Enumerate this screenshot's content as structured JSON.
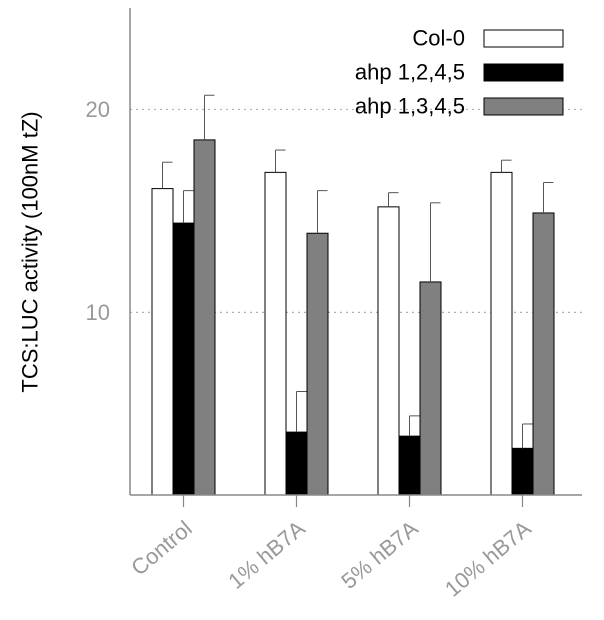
{
  "chart_data": {
    "type": "bar",
    "title": "",
    "xlabel": "",
    "ylabel": "TCS:LUC activity (100nM tZ)",
    "ylim": [
      1,
      25
    ],
    "yticks": [
      10,
      20
    ],
    "grid": true,
    "legend_position": "top-right",
    "categories": [
      "Control",
      "1% hB7A",
      "5% hB7A",
      "10% hB7A"
    ],
    "series": [
      {
        "name": "Col-0",
        "color": "#ffffff",
        "values": [
          16.1,
          16.9,
          15.2,
          16.9
        ],
        "errors": [
          1.3,
          1.1,
          0.7,
          0.6
        ]
      },
      {
        "name": "ahp 1,2,4,5",
        "color": "#000000",
        "values": [
          14.4,
          4.1,
          3.9,
          3.3
        ],
        "errors": [
          1.6,
          2.0,
          1.0,
          1.2
        ]
      },
      {
        "name": "ahp 1,3,4,5",
        "color": "#808080",
        "values": [
          18.5,
          13.9,
          11.5,
          14.9
        ],
        "errors": [
          2.2,
          2.1,
          3.9,
          1.5
        ]
      }
    ]
  }
}
